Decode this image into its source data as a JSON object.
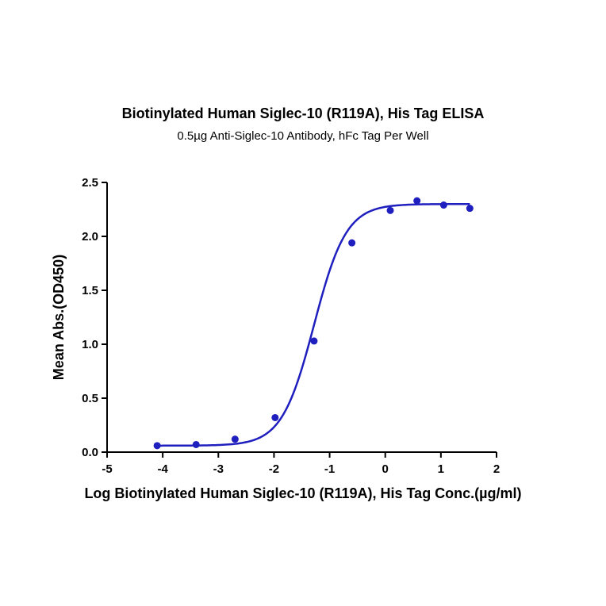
{
  "chart_data": {
    "type": "scatter",
    "title": "Biotinylated Human Siglec-10 (R119A), His Tag ELISA",
    "subtitle": "0.5µg Anti-Siglec-10 Antibody, hFc Tag Per Well",
    "xlabel": "Log Biotinylated Human Siglec-10 (R119A), His Tag Conc.(µg/ml)",
    "ylabel": "Mean Abs.(OD450)",
    "xlim": [
      -5,
      2
    ],
    "ylim": [
      0,
      2.5
    ],
    "x_ticks": [
      "-5",
      "-4",
      "-3",
      "-2",
      "-1",
      "0",
      "1",
      "2"
    ],
    "y_ticks": [
      "0.0",
      "0.5",
      "1.0",
      "1.5",
      "2.0",
      "2.5"
    ],
    "grid": false,
    "color": "#1f1fbf",
    "series": [
      {
        "points": [
          {
            "x": -4.1,
            "y": 0.06
          },
          {
            "x": -3.4,
            "y": 0.07
          },
          {
            "x": -2.7,
            "y": 0.12
          },
          {
            "x": -1.98,
            "y": 0.32
          },
          {
            "x": -1.28,
            "y": 1.03
          },
          {
            "x": -0.6,
            "y": 1.94
          },
          {
            "x": 0.09,
            "y": 2.24
          },
          {
            "x": 0.57,
            "y": 2.33
          },
          {
            "x": 1.05,
            "y": 2.29
          },
          {
            "x": 1.52,
            "y": 2.26
          }
        ],
        "fit": {
          "model": "4PL",
          "bottom": 0.06,
          "top": 2.3,
          "logEC50": -1.28,
          "hill": 1.5
        }
      }
    ]
  }
}
